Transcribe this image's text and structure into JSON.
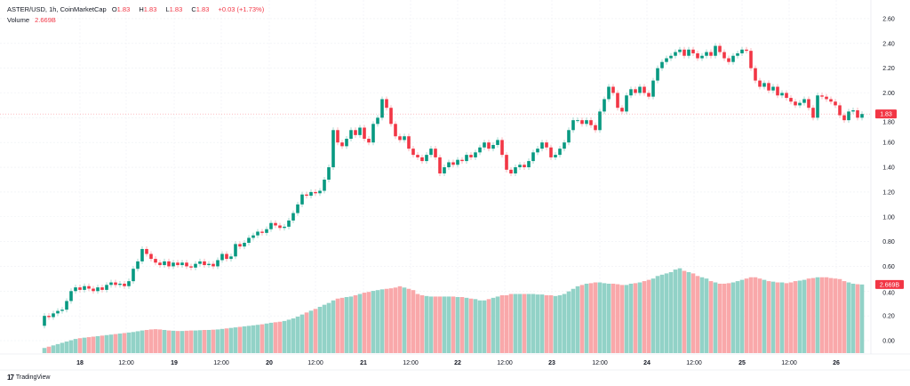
{
  "legend": {
    "symbol": "ASTER/USD, 1h, CoinMarketCap",
    "o_label": "O",
    "o_value": "1.83",
    "h_label": "H",
    "h_value": "1.83",
    "l_label": "L",
    "l_value": "1.83",
    "c_label": "C",
    "c_value": "1.83",
    "change": "+0.03 (+1.73%)",
    "volume_label": "Volume",
    "volume_value": "2.669B"
  },
  "brand": {
    "logo": "TV",
    "name": "TradingView"
  },
  "colors": {
    "up": "#089981",
    "down": "#f23645",
    "volume_up": "#92d2c7",
    "volume_down": "#f9a8aa",
    "grid": "#eef0f3"
  },
  "chart_data": {
    "type": "candlestick",
    "title": "ASTER/USD, 1h, CoinMarketCap",
    "interval": "1h",
    "ylim": [
      -0.1,
      2.68
    ],
    "y_ticks": [
      "2.60",
      "2.40",
      "2.20",
      "2.00",
      "1.80",
      "1.60",
      "1.40",
      "1.20",
      "1.00",
      "0.80",
      "0.60",
      "0.40",
      "0.20",
      "0.00"
    ],
    "y_tick_values": [
      2.6,
      2.4,
      2.2,
      2.0,
      1.8,
      1.6,
      1.4,
      1.2,
      1.0,
      0.8,
      0.6,
      0.4,
      0.2,
      0.0
    ],
    "x_ticks": [
      "18",
      "12:00",
      "19",
      "12:00",
      "20",
      "12:00",
      "21",
      "12:00",
      "22",
      "12:00",
      "23",
      "12:00",
      "24",
      "12:00",
      "25",
      "12:00",
      "26"
    ],
    "grid": true,
    "last_price_label": "1.83",
    "last_volume_label": "2.669B",
    "first_open": 0.12,
    "close": [
      0.2,
      0.19,
      0.22,
      0.24,
      0.25,
      0.32,
      0.4,
      0.43,
      0.41,
      0.44,
      0.42,
      0.4,
      0.43,
      0.41,
      0.45,
      0.47,
      0.45,
      0.46,
      0.44,
      0.48,
      0.58,
      0.64,
      0.74,
      0.7,
      0.66,
      0.63,
      0.61,
      0.64,
      0.6,
      0.63,
      0.61,
      0.63,
      0.6,
      0.59,
      0.62,
      0.64,
      0.61,
      0.62,
      0.6,
      0.65,
      0.7,
      0.66,
      0.68,
      0.78,
      0.76,
      0.79,
      0.83,
      0.85,
      0.88,
      0.87,
      0.9,
      0.95,
      0.93,
      0.91,
      0.92,
      0.97,
      1.03,
      1.1,
      1.18,
      1.17,
      1.2,
      1.19,
      1.21,
      1.3,
      1.4,
      1.7,
      1.6,
      1.57,
      1.63,
      1.7,
      1.66,
      1.72,
      1.63,
      1.6,
      1.75,
      1.8,
      1.95,
      1.88,
      1.75,
      1.65,
      1.62,
      1.65,
      1.55,
      1.5,
      1.48,
      1.45,
      1.5,
      1.55,
      1.48,
      1.35,
      1.4,
      1.44,
      1.42,
      1.46,
      1.45,
      1.5,
      1.48,
      1.52,
      1.56,
      1.6,
      1.55,
      1.58,
      1.62,
      1.5,
      1.38,
      1.35,
      1.4,
      1.42,
      1.4,
      1.45,
      1.52,
      1.55,
      1.6,
      1.56,
      1.48,
      1.5,
      1.55,
      1.6,
      1.7,
      1.78,
      1.78,
      1.75,
      1.78,
      1.74,
      1.7,
      1.85,
      1.95,
      2.05,
      2.0,
      1.88,
      1.85,
      1.98,
      2.03,
      2.0,
      2.05,
      2.0,
      1.97,
      2.1,
      2.2,
      2.25,
      2.28,
      2.3,
      2.33,
      2.35,
      2.3,
      2.35,
      2.32,
      2.28,
      2.3,
      2.33,
      2.3,
      2.38,
      2.33,
      2.28,
      2.25,
      2.3,
      2.32,
      2.35,
      2.34,
      2.2,
      2.1,
      2.05,
      2.08,
      2.02,
      2.05,
      1.98,
      2.0,
      1.96,
      1.93,
      1.9,
      1.92,
      1.95,
      1.88,
      1.8,
      1.98,
      1.97,
      1.95,
      1.93,
      1.9,
      1.82,
      1.78,
      1.85,
      1.86,
      1.8,
      1.83
    ],
    "volume_billions": [
      0.2,
      0.25,
      0.3,
      0.35,
      0.4,
      0.45,
      0.5,
      0.55,
      0.58,
      0.6,
      0.62,
      0.64,
      0.66,
      0.68,
      0.7,
      0.72,
      0.74,
      0.76,
      0.78,
      0.8,
      0.82,
      0.85,
      0.88,
      0.9,
      0.92,
      0.93,
      0.92,
      0.9,
      0.88,
      0.87,
      0.86,
      0.86,
      0.87,
      0.88,
      0.88,
      0.89,
      0.9,
      0.9,
      0.91,
      0.92,
      0.94,
      0.96,
      0.98,
      1.0,
      1.02,
      1.04,
      1.06,
      1.08,
      1.1,
      1.12,
      1.15,
      1.18,
      1.2,
      1.22,
      1.25,
      1.3,
      1.35,
      1.42,
      1.5,
      1.58,
      1.65,
      1.72,
      1.8,
      1.88,
      1.95,
      2.05,
      2.12,
      2.15,
      2.18,
      2.2,
      2.25,
      2.3,
      2.35,
      2.38,
      2.42,
      2.45,
      2.48,
      2.5,
      2.52,
      2.55,
      2.6,
      2.55,
      2.5,
      2.45,
      2.3,
      2.25,
      2.22,
      2.2,
      2.2,
      2.2,
      2.2,
      2.2,
      2.2,
      2.18,
      2.18,
      2.15,
      2.12,
      2.1,
      2.05,
      2.05,
      2.1,
      2.15,
      2.2,
      2.25,
      2.25,
      2.3,
      2.3,
      2.3,
      2.3,
      2.3,
      2.3,
      2.28,
      2.28,
      2.25,
      2.25,
      2.22,
      2.25,
      2.3,
      2.4,
      2.5,
      2.6,
      2.65,
      2.7,
      2.72,
      2.75,
      2.75,
      2.72,
      2.7,
      2.7,
      2.68,
      2.65,
      2.65,
      2.7,
      2.72,
      2.75,
      2.8,
      2.85,
      2.9,
      3.0,
      3.05,
      3.1,
      3.15,
      3.25,
      3.3,
      3.2,
      3.15,
      3.1,
      3.0,
      2.95,
      2.9,
      2.8,
      2.75,
      2.7,
      2.7,
      2.72,
      2.75,
      2.8,
      2.85,
      2.9,
      2.95,
      2.95,
      2.9,
      2.85,
      2.8,
      2.78,
      2.75,
      2.75,
      2.72,
      2.75,
      2.8,
      2.82,
      2.85,
      2.9,
      2.92,
      2.95,
      2.95,
      2.95,
      2.92,
      2.9,
      2.88,
      2.8,
      2.75,
      2.7,
      2.68,
      2.669
    ]
  }
}
